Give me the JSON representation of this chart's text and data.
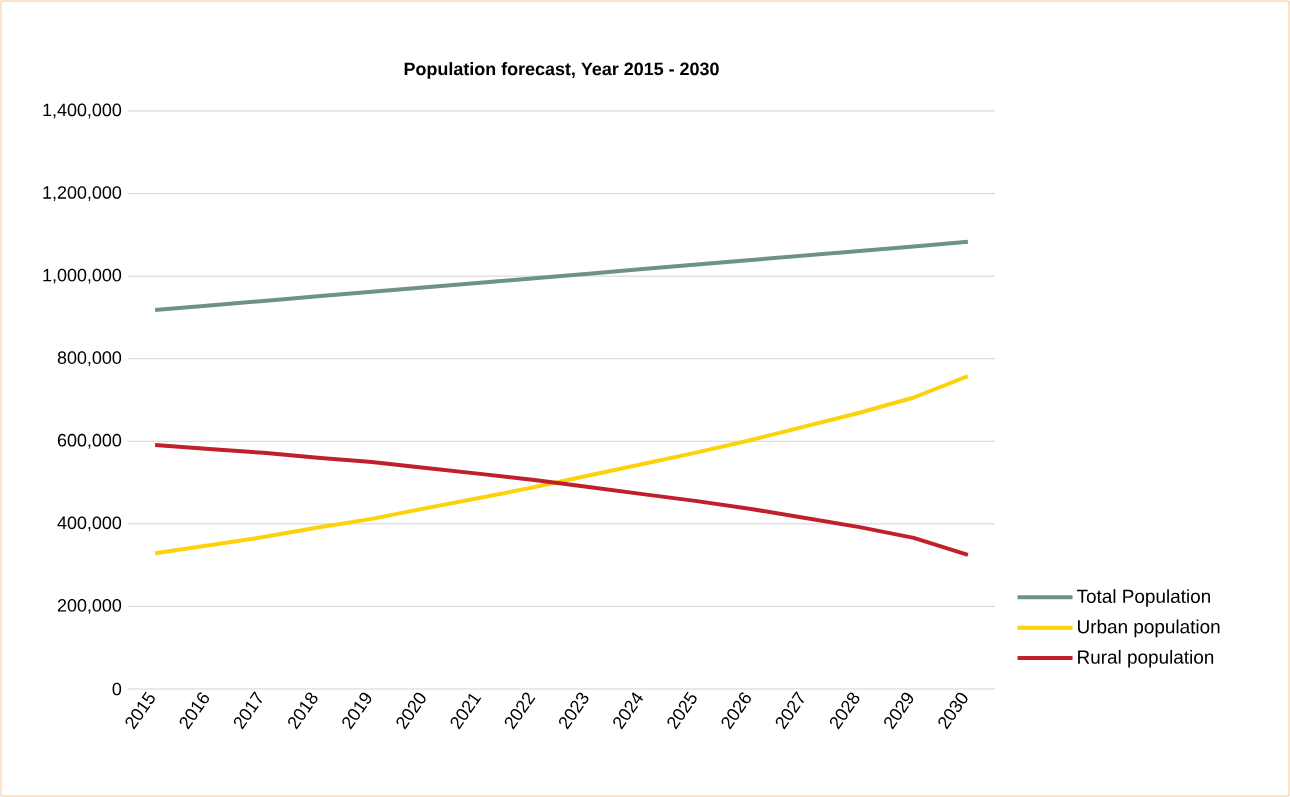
{
  "chart_data": {
    "type": "line",
    "title": "Population forecast, Year 2015 - 2030",
    "categories": [
      "2015",
      "2016",
      "2017",
      "2018",
      "2019",
      "2020",
      "2021",
      "2022",
      "2023",
      "2024",
      "2025",
      "2026",
      "2027",
      "2028",
      "2029",
      "2030"
    ],
    "series": [
      {
        "name": "Total Population",
        "color": "#6b9484",
        "values": [
          918000,
          929000,
          940000,
          951000,
          962000,
          973000,
          984000,
          995000,
          1006000,
          1017000,
          1028000,
          1039000,
          1050000,
          1061000,
          1072000,
          1083000
        ]
      },
      {
        "name": "Urban population",
        "color": "#fdd20a",
        "values": [
          329000,
          348000,
          368000,
          391000,
          412000,
          438000,
          463000,
          489000,
          517000,
          545000,
          573000,
          603000,
          636000,
          669000,
          706000,
          758000
        ]
      },
      {
        "name": "Rural population",
        "color": "#c0202a",
        "values": [
          591000,
          581000,
          572000,
          560000,
          550000,
          535000,
          521000,
          506000,
          489000,
          472000,
          455000,
          436000,
          414000,
          392000,
          366000,
          325000
        ]
      }
    ],
    "ylim": [
      0,
      1400000
    ],
    "yticks": [
      0,
      {
        "value": 200000,
        "label": "200,000"
      },
      {
        "value": 400000,
        "label": "400,000"
      },
      {
        "value": 600000,
        "label": "600,000"
      },
      {
        "value": 800000,
        "label": "800,000"
      },
      {
        "value": 1000000,
        "label": "1,000,000"
      },
      {
        "value": 1200000,
        "label": "1,200,000"
      },
      {
        "value": 1400000,
        "label": "1,400,000"
      }
    ],
    "grid": "y",
    "legend": "right",
    "line_style": "solid"
  }
}
